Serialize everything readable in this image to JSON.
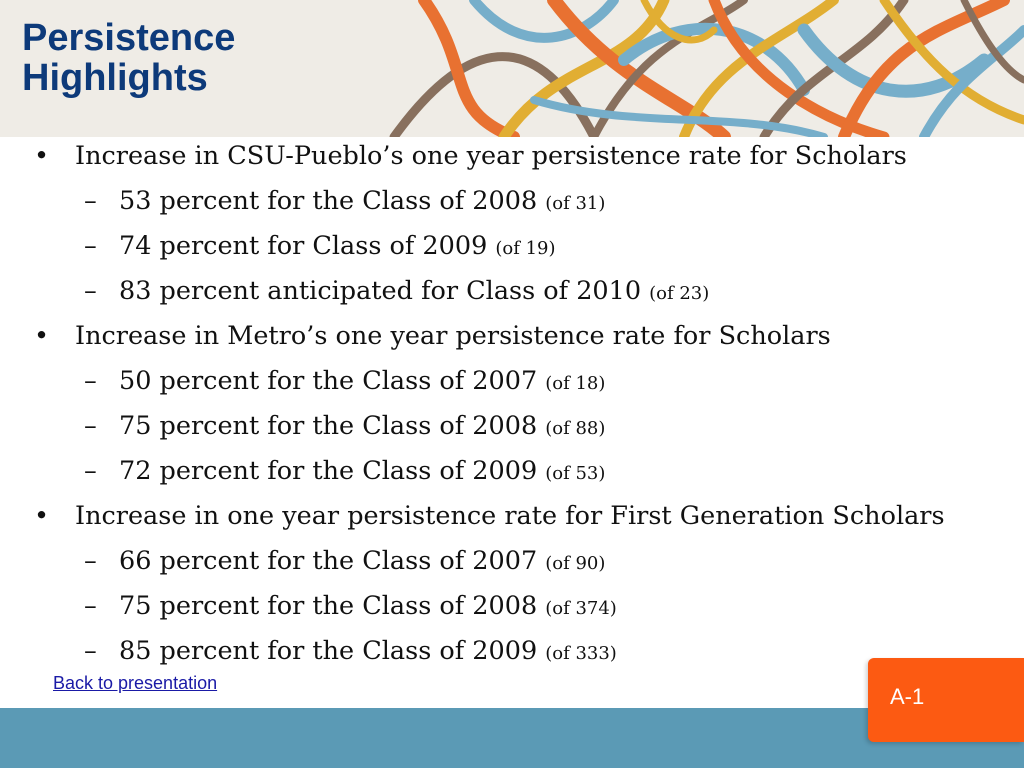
{
  "slide": {
    "title_line1": "Persistence",
    "title_line2": "Highlights",
    "colors": {
      "title": "#0d3a7a",
      "header_background": "#efece6",
      "bottom_bar": "#5b9ab5",
      "badge": "#fc5a12",
      "art_orange": "#e8641e",
      "art_blue": "#6aa8c8",
      "art_gold": "#e0a820",
      "art_brown": "#7d6350"
    }
  },
  "bullets": [
    {
      "text": "Increase in CSU-Pueblo’s one year persistence rate for Scholars",
      "subitems": [
        {
          "text": "53 percent for the Class of 2008",
          "note": "(of 31)"
        },
        {
          "text": "74 percent for Class of 2009",
          "note": "(of 19)"
        },
        {
          "text": "83 percent anticipated for Class of 2010",
          "note": "(of 23)"
        }
      ]
    },
    {
      "text": "Increase in Metro’s one year persistence rate for Scholars",
      "subitems": [
        {
          "text": "50 percent for the Class of 2007",
          "note": "(of 18)"
        },
        {
          "text": "75 percent for the Class of 2008",
          "note": "(of 88)"
        },
        {
          "text": "72 percent for the Class of 2009",
          "note": "(of 53)"
        }
      ]
    },
    {
      "text": "Increase in one year persistence rate for First Generation Scholars",
      "subitems": [
        {
          "text": "66 percent for the Class of 2007",
          "note": "(of 90)"
        },
        {
          "text": "75 percent for the Class of 2008",
          "note": "(of 374)"
        },
        {
          "text": "85 percent for the Class of 2009",
          "note": "(of 333)"
        }
      ]
    }
  ],
  "back_link": "Back to presentation",
  "badge_label": "A-1"
}
